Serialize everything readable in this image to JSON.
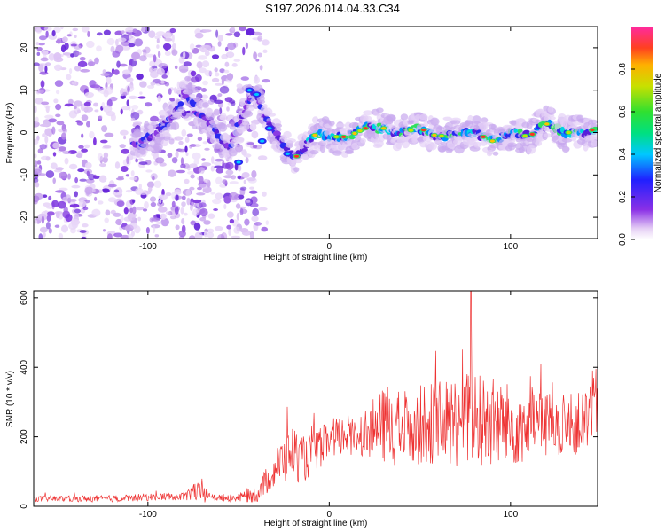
{
  "title": "S197.2026.014.04.33.C34",
  "chart_data": [
    {
      "type": "heatmap",
      "name": "spectrogram",
      "xlabel": "Height of straight line (km)",
      "ylabel": "Frequency (Hz)",
      "xlim": [
        -163,
        148
      ],
      "ylim": [
        -25,
        25
      ],
      "xticks": [
        -100,
        0,
        100
      ],
      "xtick_labels": [
        "-100",
        "0",
        "100"
      ],
      "yticks": [
        -20,
        -10,
        0,
        10,
        20
      ],
      "ytick_labels": [
        "-20",
        "-10",
        "0",
        "10",
        "20"
      ],
      "ridge": {
        "x": [
          -105,
          -95,
          -85,
          -80,
          -75,
          -65,
          -55,
          -45,
          -40,
          -35,
          -30,
          -25,
          -20,
          -15,
          -10,
          -5,
          0,
          10,
          20,
          30,
          40,
          50,
          60,
          70,
          80,
          90,
          100,
          110,
          120,
          130,
          140,
          148
        ],
        "y": [
          -3,
          0,
          4,
          9,
          6,
          2,
          -4,
          7,
          9,
          3,
          0,
          -3,
          -6,
          -5,
          -1,
          0,
          -1,
          -1,
          1,
          1,
          0,
          1,
          -1,
          0,
          0,
          -2,
          0,
          -1,
          2,
          0,
          0,
          1
        ]
      },
      "colorbar": {
        "label": "Normalized spectral amplitude",
        "range": [
          0,
          1
        ],
        "ticks": [
          0.0,
          0.2,
          0.4,
          0.6,
          0.8
        ],
        "tick_labels": [
          "0.0",
          "0.2",
          "0.4",
          "0.6",
          "0.8"
        ]
      }
    },
    {
      "type": "line",
      "name": "snr",
      "xlabel": "Height of straight line (km)",
      "ylabel": "SNR (10 * v/v)",
      "xlim": [
        -163,
        148
      ],
      "ylim": [
        0,
        620
      ],
      "xticks": [
        -100,
        0,
        100
      ],
      "xtick_labels": [
        "-100",
        "0",
        "100"
      ],
      "yticks": [
        0,
        200,
        400,
        600
      ],
      "ytick_labels": [
        "0",
        "200",
        "400",
        "600"
      ],
      "color": "#ee3333",
      "envelope": {
        "x": [
          -163,
          -120,
          -80,
          -75,
          -70,
          -65,
          -50,
          -40,
          -35,
          -30,
          -20,
          -15,
          -10,
          0,
          10,
          20,
          30,
          35,
          40,
          60,
          80,
          100,
          120,
          130,
          140,
          148
        ],
        "mean": [
          22,
          22,
          30,
          45,
          35,
          25,
          25,
          35,
          70,
          110,
          160,
          130,
          150,
          190,
          205,
          215,
          230,
          240,
          230,
          240,
          250,
          230,
          240,
          230,
          240,
          300
        ],
        "amplitude": [
          8,
          10,
          12,
          30,
          25,
          10,
          12,
          25,
          40,
          60,
          80,
          70,
          60,
          60,
          60,
          70,
          110,
          130,
          110,
          120,
          150,
          120,
          100,
          90,
          90,
          110
        ]
      },
      "peak": {
        "x": 78,
        "y": 620
      }
    }
  ]
}
